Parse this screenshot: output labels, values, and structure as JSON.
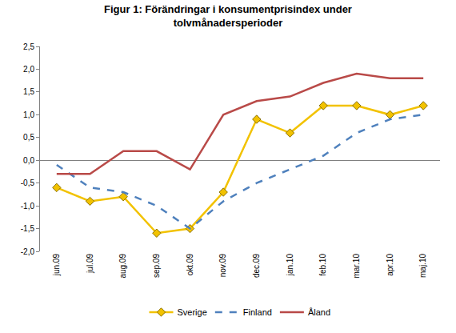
{
  "chart_data": {
    "type": "line",
    "title": "Figur 1: Förändringar i konsumentprisindex under tolvmånadersperioder",
    "categories": [
      "jun.09",
      "jul.09",
      "aug.09",
      "sep.09",
      "okt.09",
      "nov.09",
      "dec.09",
      "jan.10",
      "feb.10",
      "mar.10",
      "apr.10",
      "maj.10"
    ],
    "series": [
      {
        "name": "Sverige",
        "color": "#F2C200",
        "marker": "diamond",
        "line_style": "solid",
        "values": [
          -0.6,
          -0.9,
          -0.8,
          -1.6,
          -1.5,
          -0.7,
          0.9,
          0.6,
          1.2,
          1.2,
          1.0,
          1.2
        ]
      },
      {
        "name": "Finland",
        "color": "#4F81BD",
        "marker": "none",
        "line_style": "dash",
        "values": [
          -0.1,
          -0.6,
          -0.7,
          -1.0,
          -1.5,
          -0.9,
          -0.5,
          -0.2,
          0.1,
          0.6,
          0.9,
          1.0
        ]
      },
      {
        "name": "Åland",
        "color": "#B94A48",
        "marker": "none",
        "line_style": "solid",
        "values": [
          -0.3,
          -0.3,
          0.2,
          0.2,
          -0.2,
          1.0,
          1.3,
          1.4,
          1.7,
          1.9,
          1.8,
          1.8
        ]
      }
    ],
    "ylim": [
      -2.0,
      2.5
    ],
    "yticks": [
      {
        "value": -2.0,
        "label": "-2,0"
      },
      {
        "value": -1.5,
        "label": "-1,5"
      },
      {
        "value": -1.0,
        "label": "-1,0"
      },
      {
        "value": -0.5,
        "label": "-0,5"
      },
      {
        "value": 0.0,
        "label": "0,0"
      },
      {
        "value": 0.5,
        "label": "0,5"
      },
      {
        "value": 1.0,
        "label": "1,0"
      },
      {
        "value": 1.5,
        "label": "1,5"
      },
      {
        "value": 2.0,
        "label": "2,0"
      },
      {
        "value": 2.5,
        "label": "2,5"
      }
    ],
    "grid": false,
    "legend": "bottom"
  }
}
